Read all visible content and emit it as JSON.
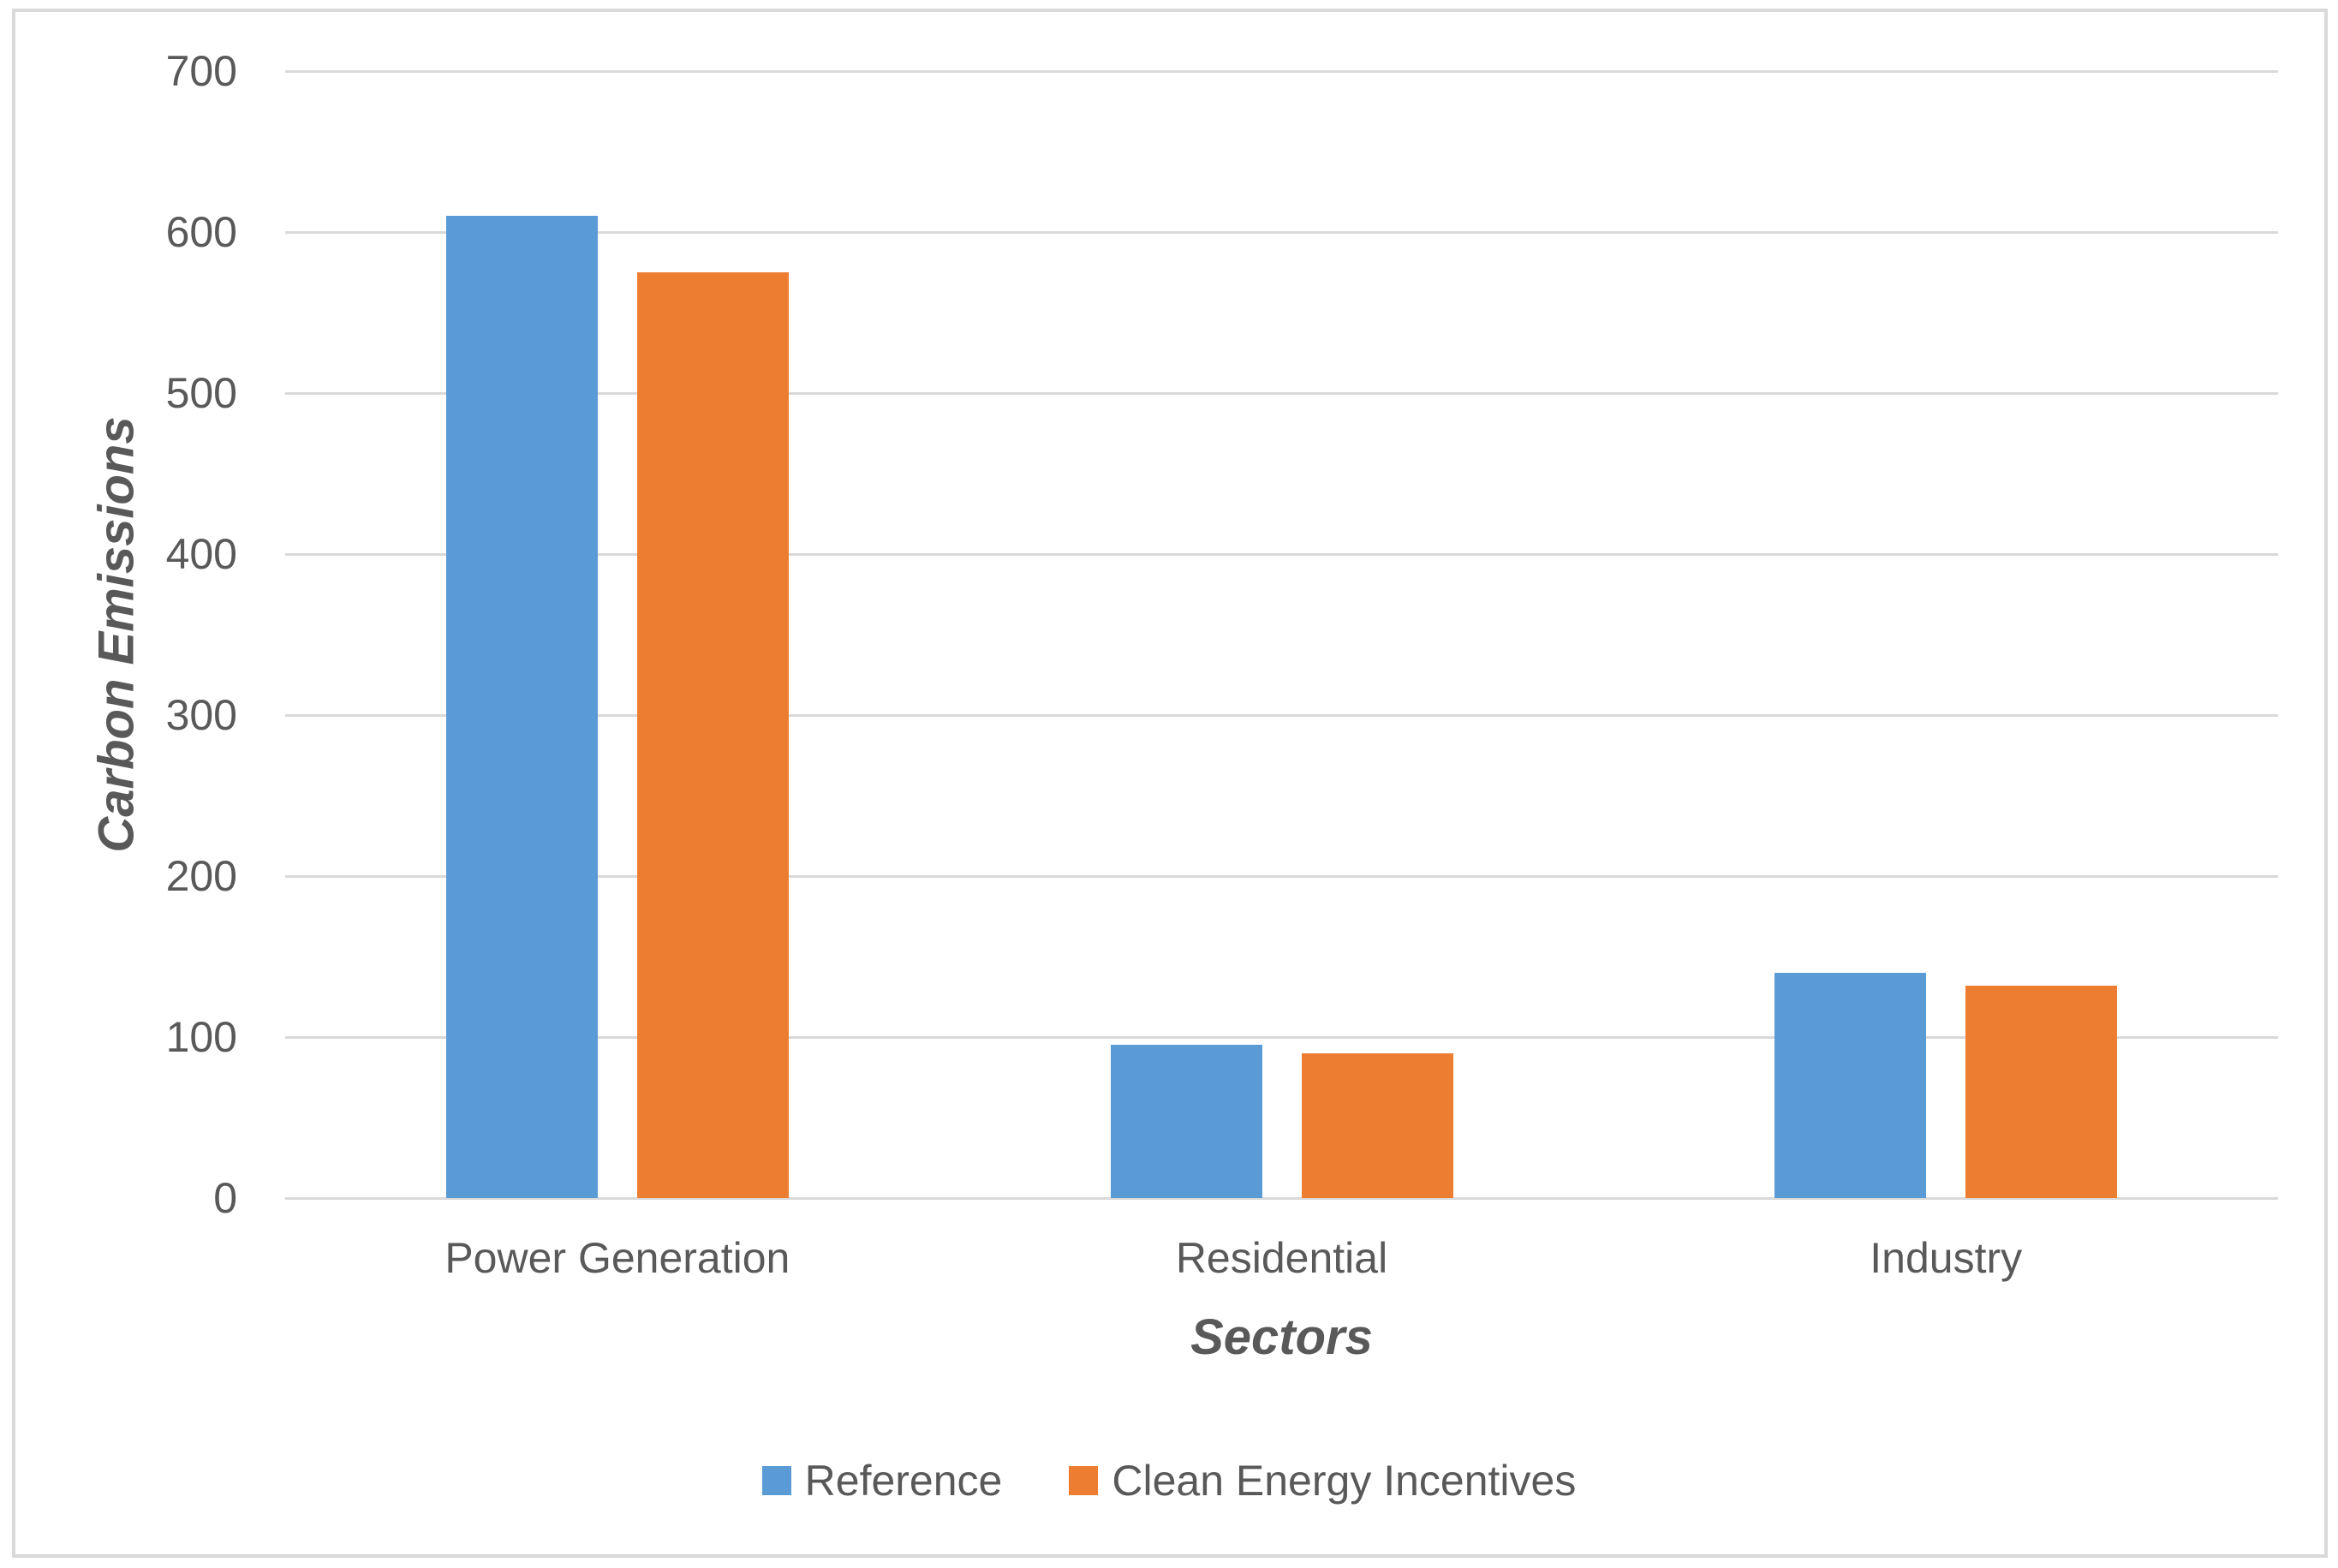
{
  "chart_data": {
    "type": "bar",
    "title": "",
    "categories": [
      "Power Generation",
      "Residential",
      "Industry"
    ],
    "series": [
      {
        "name": "Reference",
        "color": "#5B9BD5",
        "values": [
          610,
          95,
          140
        ]
      },
      {
        "name": "Clean Energy Incentives",
        "color": "#ED7D31",
        "values": [
          575,
          90,
          132
        ]
      }
    ],
    "xlabel": "Sectors",
    "ylabel": "Carbon Emissions",
    "ylim": [
      0,
      700
    ],
    "ytick_step": 100,
    "ytick_labels": [
      "0",
      "100",
      "200",
      "300",
      "400",
      "500",
      "600",
      "700"
    ],
    "grid": true,
    "legend_position": "bottom"
  },
  "colors": {
    "background": "#FFFFFF",
    "frame_border": "#D9D9D9",
    "gridline": "#D9D9D9",
    "text": "#595959",
    "series_reference": "#5B9BD5",
    "series_clean_energy": "#ED7D31"
  }
}
